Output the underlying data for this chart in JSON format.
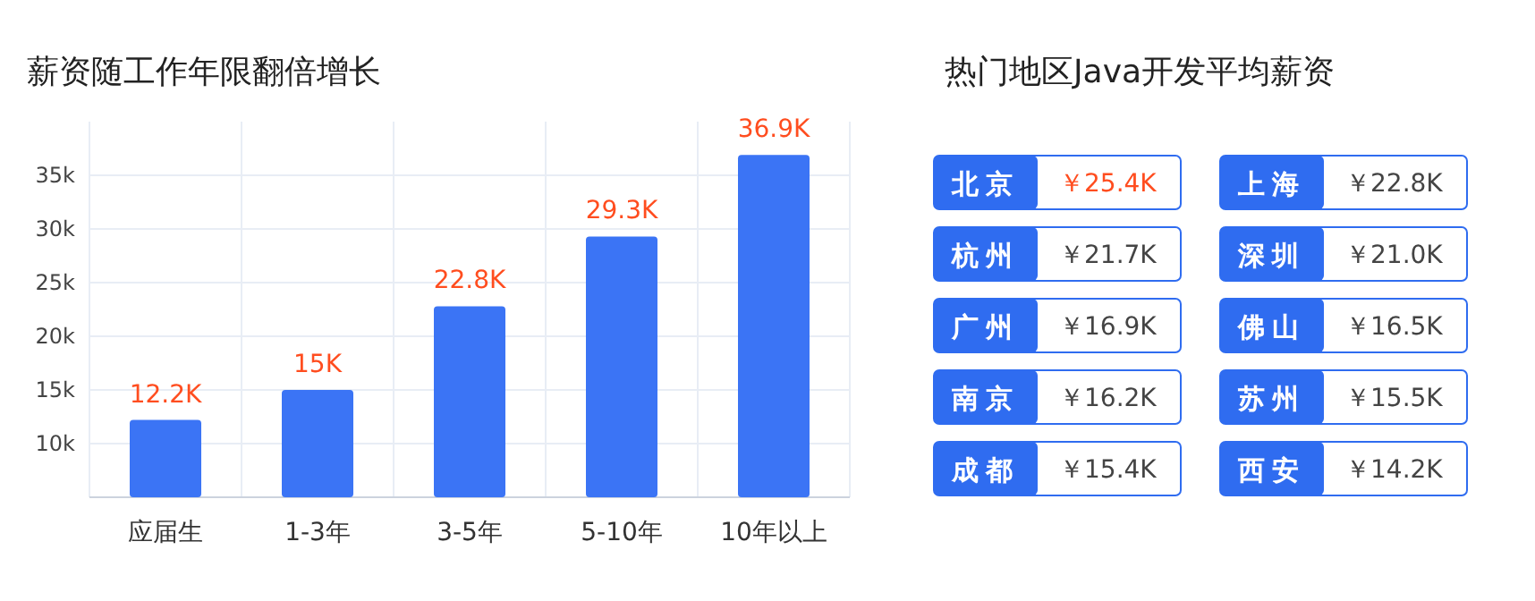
{
  "chart_data": [
    {
      "type": "bar",
      "title": "薪资随工作年限翻倍增长",
      "categories": [
        "应届生",
        "1-3年",
        "3-5年",
        "5-10年",
        "10年以上"
      ],
      "values": [
        12.2,
        15,
        22.8,
        29.3,
        36.9
      ],
      "value_labels": [
        "12.2K",
        "15K",
        "22.8K",
        "29.3K",
        "36.9K"
      ],
      "color": "#3b74f5",
      "ylim": [
        5,
        40
      ],
      "yticks": [
        {
          "value": 10,
          "label": "10k"
        },
        {
          "value": 15,
          "label": "15k"
        },
        {
          "value": 20,
          "label": "20k"
        },
        {
          "value": 25,
          "label": "25k"
        },
        {
          "value": 30,
          "label": "30k"
        },
        {
          "value": 35,
          "label": "35k"
        }
      ],
      "grid": true
    },
    {
      "type": "other",
      "title": "热门地区Java开发平均薪资",
      "categories": [
        "北京",
        "上海",
        "杭州",
        "深圳",
        "广州",
        "佛山",
        "南京",
        "苏州",
        "成都",
        "西安"
      ],
      "value_labels": [
        "￥25.4K",
        "￥22.8K",
        "￥21.7K",
        "￥21.0K",
        "￥16.9K",
        "￥16.5K",
        "￥16.2K",
        "￥15.5K",
        "￥15.4K",
        "￥14.2K"
      ],
      "color": "#2f6cf0"
    }
  ]
}
